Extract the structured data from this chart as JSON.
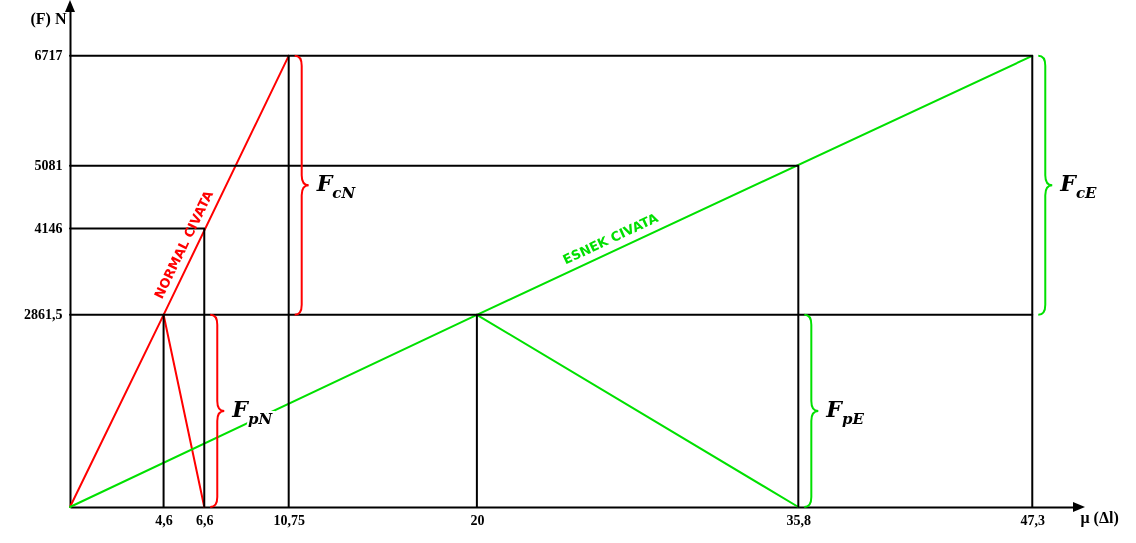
{
  "chart_data": {
    "type": "line",
    "xlabel": "μ (Δl)",
    "ylabel": "(F) N",
    "xlim": [
      0,
      49.4
    ],
    "ylim": [
      0,
      7400
    ],
    "xticks": [
      {
        "value": 4.6,
        "label": "4,6"
      },
      {
        "value": 6.6,
        "label": "6,6"
      },
      {
        "value": 10.75,
        "label": "10,75"
      },
      20,
      {
        "value": 35.8,
        "label": "35,8"
      },
      {
        "value": 47.3,
        "label": "47,3"
      }
    ],
    "yticks": [
      {
        "value": 2861.5,
        "label": "2861,5"
      },
      4146,
      5081,
      6717
    ],
    "line_style": "solid",
    "series": [
      {
        "name": "NORMAL CIVATA",
        "color": "#ff0000",
        "x": [
          0,
          4.6,
          10.75
        ],
        "values": [
          0,
          2861.5,
          6717
        ]
      },
      {
        "color": "#ff0000",
        "x": [
          4.6,
          6.6
        ],
        "values": [
          2861.5,
          0
        ]
      },
      {
        "name": "ESNEK CIVATA",
        "color": "#00e000",
        "x": [
          0,
          20,
          47.3
        ],
        "values": [
          0,
          2861.5,
          6717
        ]
      },
      {
        "color": "#00e000",
        "x": [
          20,
          35.8
        ],
        "values": [
          2861.5,
          0
        ]
      },
      {
        "color": "#000000",
        "x": [
          0,
          47.3,
          47.3
        ],
        "values": [
          6717,
          6717,
          0
        ]
      },
      {
        "color": "#000000",
        "x": [
          0,
          35.8,
          35.8
        ],
        "values": [
          5081,
          5081,
          0
        ]
      },
      {
        "color": "#000000",
        "x": [
          0,
          6.6,
          6.6
        ],
        "values": [
          4146,
          4146,
          0
        ]
      },
      {
        "color": "#000000",
        "x": [
          0,
          47.3
        ],
        "values": [
          2861.5,
          2861.5
        ]
      },
      {
        "color": "#000000",
        "x": [
          4.6,
          4.6
        ],
        "values": [
          2861.5,
          0
        ]
      },
      {
        "color": "#000000",
        "x": [
          10.75,
          10.75
        ],
        "values": [
          6717,
          0
        ]
      },
      {
        "color": "#000000",
        "x": [
          20,
          20
        ],
        "values": [
          2861.5,
          0
        ]
      }
    ],
    "annotations": [
      "F$_{cN}$",
      "F$_{pN}$",
      "F$_{cE}$",
      "F$_{pE}$"
    ]
  }
}
